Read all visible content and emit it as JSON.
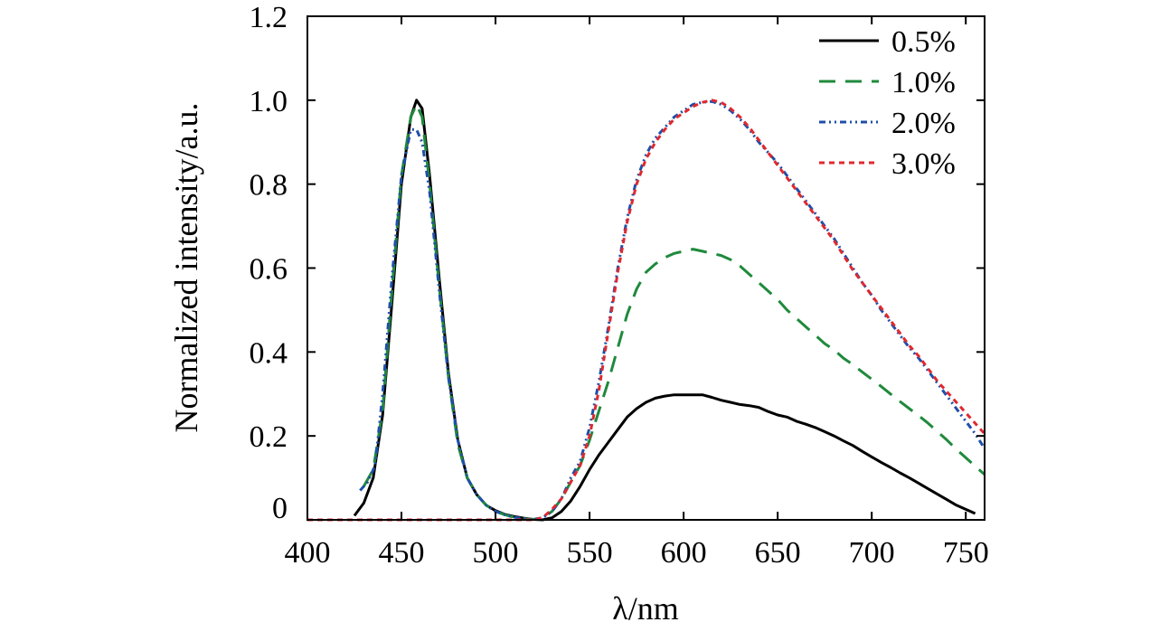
{
  "chart_data": {
    "type": "line",
    "title": "",
    "xlabel": "λ/nm",
    "ylabel": "Normalized intensity/a.u.",
    "xlim": [
      400,
      760
    ],
    "ylim": [
      0,
      1.2
    ],
    "x_ticks": [
      400,
      450,
      500,
      550,
      600,
      650,
      700,
      750
    ],
    "x_tick_labels": [
      "400",
      "450",
      "500",
      "550",
      "600",
      "650",
      "700",
      "750"
    ],
    "y_ticks": [
      0,
      0.2,
      0.4,
      0.6,
      0.8,
      1.0,
      1.2
    ],
    "y_tick_labels": [
      "0",
      "0.2",
      "0.4",
      "0.6",
      "0.8",
      "1.0",
      "1.2"
    ],
    "legend_position": "top-right",
    "grid": false,
    "series": [
      {
        "name": "0.5%",
        "color": "#000000",
        "dash": "solid",
        "points": [
          [
            425,
            0.01
          ],
          [
            430,
            0.04
          ],
          [
            435,
            0.1
          ],
          [
            440,
            0.25
          ],
          [
            445,
            0.52
          ],
          [
            450,
            0.8
          ],
          [
            455,
            0.96
          ],
          [
            458,
            1.0
          ],
          [
            461,
            0.98
          ],
          [
            465,
            0.82
          ],
          [
            470,
            0.58
          ],
          [
            475,
            0.35
          ],
          [
            480,
            0.19
          ],
          [
            485,
            0.1
          ],
          [
            490,
            0.06
          ],
          [
            495,
            0.035
          ],
          [
            500,
            0.022
          ],
          [
            505,
            0.013
          ],
          [
            510,
            0.008
          ],
          [
            515,
            0.004
          ],
          [
            520,
            0.001
          ],
          [
            525,
            0.0
          ],
          [
            530,
            0.005
          ],
          [
            535,
            0.02
          ],
          [
            540,
            0.045
          ],
          [
            545,
            0.08
          ],
          [
            550,
            0.12
          ],
          [
            555,
            0.155
          ],
          [
            560,
            0.185
          ],
          [
            565,
            0.215
          ],
          [
            570,
            0.245
          ],
          [
            575,
            0.265
          ],
          [
            580,
            0.28
          ],
          [
            585,
            0.29
          ],
          [
            590,
            0.295
          ],
          [
            595,
            0.298
          ],
          [
            600,
            0.298
          ],
          [
            605,
            0.298
          ],
          [
            610,
            0.298
          ],
          [
            615,
            0.292
          ],
          [
            620,
            0.285
          ],
          [
            625,
            0.28
          ],
          [
            630,
            0.275
          ],
          [
            635,
            0.272
          ],
          [
            640,
            0.268
          ],
          [
            645,
            0.258
          ],
          [
            650,
            0.25
          ],
          [
            655,
            0.245
          ],
          [
            660,
            0.235
          ],
          [
            665,
            0.228
          ],
          [
            670,
            0.22
          ],
          [
            675,
            0.21
          ],
          [
            680,
            0.2
          ],
          [
            685,
            0.188
          ],
          [
            690,
            0.177
          ],
          [
            695,
            0.163
          ],
          [
            700,
            0.15
          ],
          [
            705,
            0.137
          ],
          [
            710,
            0.125
          ],
          [
            715,
            0.112
          ],
          [
            720,
            0.1
          ],
          [
            725,
            0.087
          ],
          [
            730,
            0.074
          ],
          [
            735,
            0.061
          ],
          [
            740,
            0.048
          ],
          [
            745,
            0.035
          ],
          [
            750,
            0.025
          ],
          [
            755,
            0.015
          ]
        ]
      },
      {
        "name": "1.0%",
        "color": "#1f8a3c",
        "dash": "dashed",
        "points": [
          [
            430,
            0.08
          ],
          [
            435,
            0.12
          ],
          [
            440,
            0.26
          ],
          [
            445,
            0.55
          ],
          [
            450,
            0.82
          ],
          [
            455,
            0.96
          ],
          [
            458,
            0.99
          ],
          [
            461,
            0.96
          ],
          [
            465,
            0.8
          ],
          [
            470,
            0.56
          ],
          [
            475,
            0.34
          ],
          [
            480,
            0.18
          ],
          [
            485,
            0.1
          ],
          [
            490,
            0.06
          ],
          [
            495,
            0.035
          ],
          [
            500,
            0.02
          ],
          [
            505,
            0.012
          ],
          [
            510,
            0.006
          ],
          [
            515,
            0.003
          ],
          [
            520,
            0.001
          ],
          [
            525,
            0.005
          ],
          [
            530,
            0.02
          ],
          [
            535,
            0.05
          ],
          [
            540,
            0.09
          ],
          [
            545,
            0.13
          ],
          [
            550,
            0.19
          ],
          [
            555,
            0.26
          ],
          [
            560,
            0.33
          ],
          [
            565,
            0.41
          ],
          [
            570,
            0.49
          ],
          [
            575,
            0.55
          ],
          [
            580,
            0.59
          ],
          [
            585,
            0.61
          ],
          [
            590,
            0.625
          ],
          [
            595,
            0.635
          ],
          [
            600,
            0.64
          ],
          [
            605,
            0.645
          ],
          [
            610,
            0.64
          ],
          [
            615,
            0.635
          ],
          [
            620,
            0.63
          ],
          [
            625,
            0.62
          ],
          [
            630,
            0.605
          ],
          [
            635,
            0.585
          ],
          [
            640,
            0.565
          ],
          [
            645,
            0.545
          ],
          [
            650,
            0.525
          ],
          [
            655,
            0.5
          ],
          [
            660,
            0.48
          ],
          [
            665,
            0.46
          ],
          [
            670,
            0.44
          ],
          [
            675,
            0.42
          ],
          [
            680,
            0.405
          ],
          [
            685,
            0.385
          ],
          [
            690,
            0.37
          ],
          [
            695,
            0.352
          ],
          [
            700,
            0.335
          ],
          [
            705,
            0.318
          ],
          [
            710,
            0.3
          ],
          [
            715,
            0.282
          ],
          [
            720,
            0.265
          ],
          [
            725,
            0.248
          ],
          [
            730,
            0.23
          ],
          [
            735,
            0.21
          ],
          [
            740,
            0.19
          ],
          [
            745,
            0.168
          ],
          [
            750,
            0.148
          ],
          [
            755,
            0.128
          ],
          [
            760,
            0.108
          ]
        ]
      },
      {
        "name": "2.0%",
        "color": "#1f4fa8",
        "dash": "dash-dot-dot",
        "points": [
          [
            428,
            0.07
          ],
          [
            432,
            0.09
          ],
          [
            436,
            0.13
          ],
          [
            440,
            0.3
          ],
          [
            445,
            0.58
          ],
          [
            450,
            0.82
          ],
          [
            455,
            0.93
          ],
          [
            458,
            0.93
          ],
          [
            461,
            0.9
          ],
          [
            465,
            0.78
          ],
          [
            470,
            0.55
          ],
          [
            475,
            0.34
          ],
          [
            480,
            0.19
          ],
          [
            485,
            0.1
          ],
          [
            490,
            0.06
          ],
          [
            495,
            0.035
          ],
          [
            500,
            0.02
          ],
          [
            505,
            0.012
          ],
          [
            510,
            0.006
          ],
          [
            515,
            0.003
          ],
          [
            520,
            0.001
          ],
          [
            525,
            0.005
          ],
          [
            530,
            0.02
          ],
          [
            535,
            0.05
          ],
          [
            540,
            0.1
          ],
          [
            545,
            0.14
          ],
          [
            550,
            0.22
          ],
          [
            555,
            0.33
          ],
          [
            560,
            0.46
          ],
          [
            565,
            0.6
          ],
          [
            570,
            0.72
          ],
          [
            575,
            0.81
          ],
          [
            580,
            0.87
          ],
          [
            585,
            0.91
          ],
          [
            590,
            0.935
          ],
          [
            595,
            0.96
          ],
          [
            600,
            0.975
          ],
          [
            605,
            0.99
          ],
          [
            610,
            0.995
          ],
          [
            615,
            0.997
          ],
          [
            620,
            0.99
          ],
          [
            625,
            0.975
          ],
          [
            630,
            0.955
          ],
          [
            635,
            0.93
          ],
          [
            640,
            0.9
          ],
          [
            645,
            0.875
          ],
          [
            650,
            0.85
          ],
          [
            655,
            0.82
          ],
          [
            660,
            0.79
          ],
          [
            665,
            0.76
          ],
          [
            670,
            0.73
          ],
          [
            675,
            0.7
          ],
          [
            680,
            0.67
          ],
          [
            685,
            0.635
          ],
          [
            690,
            0.6
          ],
          [
            695,
            0.565
          ],
          [
            700,
            0.535
          ],
          [
            705,
            0.5
          ],
          [
            710,
            0.47
          ],
          [
            715,
            0.44
          ],
          [
            720,
            0.41
          ],
          [
            725,
            0.385
          ],
          [
            730,
            0.355
          ],
          [
            735,
            0.325
          ],
          [
            740,
            0.295
          ],
          [
            745,
            0.265
          ],
          [
            750,
            0.235
          ],
          [
            755,
            0.205
          ],
          [
            760,
            0.17
          ]
        ]
      },
      {
        "name": "3.0%",
        "color": "#e0282e",
        "dash": "dotted",
        "points": [
          [
            400,
            0.0
          ],
          [
            410,
            0.0
          ],
          [
            420,
            0.0
          ],
          [
            430,
            0.0
          ],
          [
            440,
            0.0
          ],
          [
            450,
            0.0
          ],
          [
            460,
            0.0
          ],
          [
            470,
            0.0
          ],
          [
            480,
            0.0
          ],
          [
            490,
            0.0
          ],
          [
            500,
            0.0
          ],
          [
            510,
            0.0
          ],
          [
            520,
            0.0
          ],
          [
            525,
            0.005
          ],
          [
            530,
            0.025
          ],
          [
            535,
            0.05
          ],
          [
            540,
            0.09
          ],
          [
            545,
            0.13
          ],
          [
            550,
            0.2
          ],
          [
            555,
            0.31
          ],
          [
            560,
            0.45
          ],
          [
            565,
            0.59
          ],
          [
            570,
            0.71
          ],
          [
            575,
            0.8
          ],
          [
            580,
            0.86
          ],
          [
            585,
            0.9
          ],
          [
            590,
            0.93
          ],
          [
            595,
            0.955
          ],
          [
            600,
            0.97
          ],
          [
            605,
            0.985
          ],
          [
            610,
            0.995
          ],
          [
            615,
            1.0
          ],
          [
            620,
            0.995
          ],
          [
            625,
            0.98
          ],
          [
            630,
            0.96
          ],
          [
            635,
            0.935
          ],
          [
            640,
            0.905
          ],
          [
            645,
            0.875
          ],
          [
            650,
            0.845
          ],
          [
            655,
            0.815
          ],
          [
            660,
            0.785
          ],
          [
            665,
            0.755
          ],
          [
            670,
            0.725
          ],
          [
            675,
            0.695
          ],
          [
            680,
            0.665
          ],
          [
            685,
            0.63
          ],
          [
            690,
            0.595
          ],
          [
            695,
            0.565
          ],
          [
            700,
            0.535
          ],
          [
            705,
            0.505
          ],
          [
            710,
            0.475
          ],
          [
            715,
            0.445
          ],
          [
            720,
            0.415
          ],
          [
            725,
            0.39
          ],
          [
            730,
            0.36
          ],
          [
            735,
            0.33
          ],
          [
            740,
            0.305
          ],
          [
            745,
            0.28
          ],
          [
            750,
            0.255
          ],
          [
            755,
            0.23
          ],
          [
            760,
            0.205
          ]
        ]
      }
    ]
  }
}
